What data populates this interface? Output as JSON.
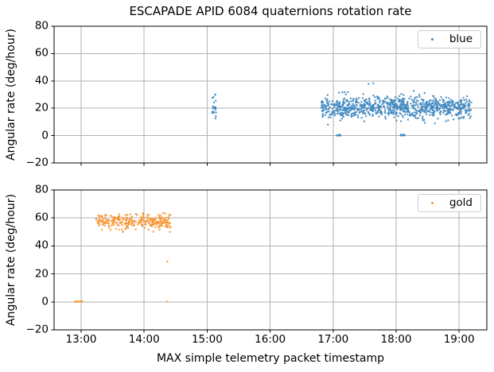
{
  "chart_data": {
    "type": "scatter",
    "title": "ESCAPADE APID 6084 quaternions rotation rate",
    "xlabel": "MAX simple telemetry packet timestamp",
    "ylabel": "Angular rate (deg/hour)",
    "grid": true,
    "legend_position": "upper right",
    "x_axis": {
      "tick_labels": [
        "13:00",
        "14:00",
        "15:00",
        "16:00",
        "17:00",
        "18:00",
        "19:00"
      ],
      "tick_hours": [
        13,
        14,
        15,
        16,
        17,
        18,
        19
      ],
      "range_hours": [
        12.57,
        19.44
      ]
    },
    "y_axis": {
      "tick_labels": [
        "80",
        "60",
        "40",
        "20",
        "0",
        "−20"
      ],
      "tick_values": [
        80,
        60,
        40,
        20,
        0,
        -20
      ],
      "range": [
        -20,
        80
      ]
    },
    "colors": {
      "grid": "#b2b2b2",
      "axis": "#000000",
      "blue_points": "#3d87c0",
      "gold_points": "#f8922e"
    },
    "subplots": [
      {
        "series": "blue",
        "color": "#3d87c0",
        "seed": 20240601,
        "clusters": [
          {
            "label": "vertical burst near 15:05",
            "t": [
              15.08,
              15.14
            ],
            "mean": 21,
            "std": 4.5,
            "min": 11,
            "max": 30,
            "n": 22
          },
          {
            "label": "main band 16:49 to 19:12",
            "t": [
              16.81,
              19.2
            ],
            "mean": 21,
            "std": 4.2,
            "min": 8,
            "max": 33,
            "n": 850
          },
          {
            "label": "high outliers near 17:35",
            "t": [
              17.55,
              17.66
            ],
            "mean": 37.5,
            "std": 0.8,
            "min": 36,
            "max": 39,
            "n": 2
          },
          {
            "label": "zero-rate dwell near 17:05",
            "t": [
              17.05,
              17.12
            ],
            "mean": 0.3,
            "std": 0.2,
            "min": 0,
            "max": 0.8,
            "n": 14
          },
          {
            "label": "zero-rate dwell near 18:05",
            "t": [
              18.07,
              18.14
            ],
            "mean": 0.3,
            "std": 0.2,
            "min": 0,
            "max": 0.8,
            "n": 14
          }
        ]
      },
      {
        "series": "gold",
        "color": "#f8922e",
        "seed": 9090907,
        "clusters": [
          {
            "label": "zero-rate cluster 12:53 to 13:01",
            "t": [
              12.88,
              13.02
            ],
            "mean": 0.2,
            "std": 0.2,
            "min": 0,
            "max": 0.6,
            "n": 9
          },
          {
            "label": "main band 13:14 to 14:25",
            "t": [
              13.23,
              14.42
            ],
            "mean": 57.5,
            "std": 2.6,
            "min": 50,
            "max": 64,
            "n": 270
          },
          {
            "label": "outlier near 14:22",
            "t": [
              14.35,
              14.37
            ],
            "mean": 28.8,
            "std": 0,
            "min": 28.8,
            "max": 28.8,
            "n": 1
          },
          {
            "label": "zero point near 14:22",
            "t": [
              14.35,
              14.37
            ],
            "mean": 0.2,
            "std": 0,
            "min": 0,
            "max": 0.4,
            "n": 1
          }
        ]
      }
    ]
  }
}
